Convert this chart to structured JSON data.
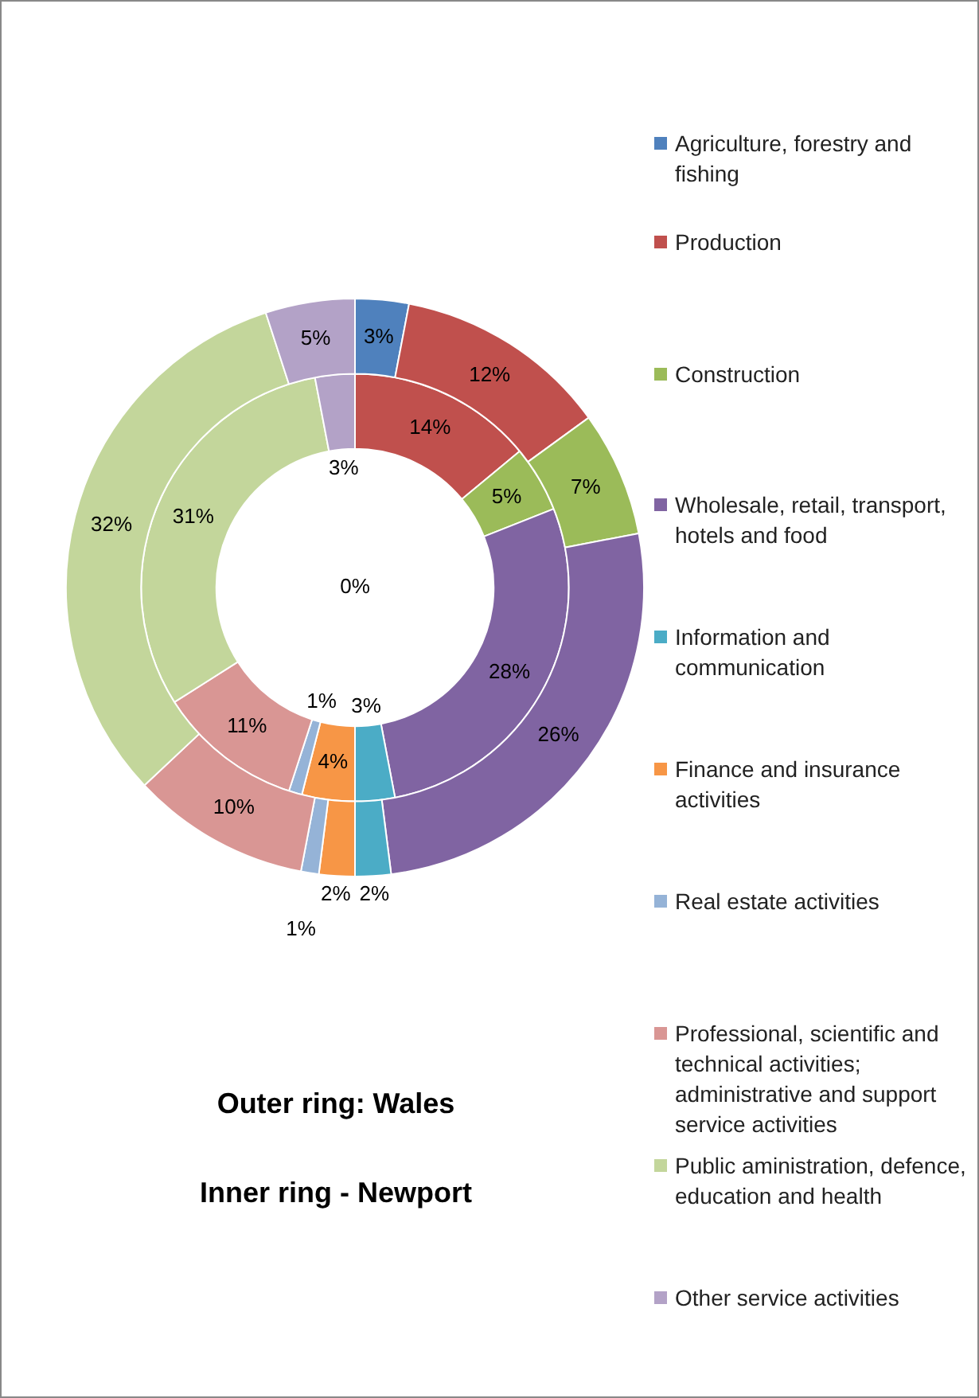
{
  "chart_data": {
    "type": "donut",
    "categories": [
      "Agriculture, forestry and fishing",
      "Production",
      "Construction",
      "Wholesale, retail, transport, hotels and food",
      "Information and communication",
      "Finance and insurance activities",
      "Real estate activities",
      "Professional, scientific and technical activities; administrative and support service activities",
      "Public aministration, defence, education and health",
      "Other service activities"
    ],
    "colors": [
      "#4f81bd",
      "#c0504d",
      "#9bbb59",
      "#8064a2",
      "#4bacc6",
      "#f79646",
      "#95b3d7",
      "#d99694",
      "#c3d69b",
      "#b3a2c7"
    ],
    "series": [
      {
        "values": [
          3,
          12,
          7,
          26,
          2,
          2,
          1,
          10,
          32,
          5
        ],
        "value_labels": [
          "3%",
          "12%",
          "7%",
          "26%",
          "2%",
          "2%",
          "1%",
          "10%",
          "32%",
          "5%"
        ]
      },
      {
        "values": [
          0,
          14,
          5,
          28,
          3,
          4,
          1,
          11,
          31,
          3
        ],
        "value_labels": [
          "0%",
          "14%",
          "5%",
          "28%",
          "3%",
          "4%",
          "1%",
          "11%",
          "31%",
          "3%"
        ]
      }
    ],
    "legend": "right",
    "annotations": [
      "Outer ring: Wales",
      "Inner ring - Newport"
    ]
  }
}
